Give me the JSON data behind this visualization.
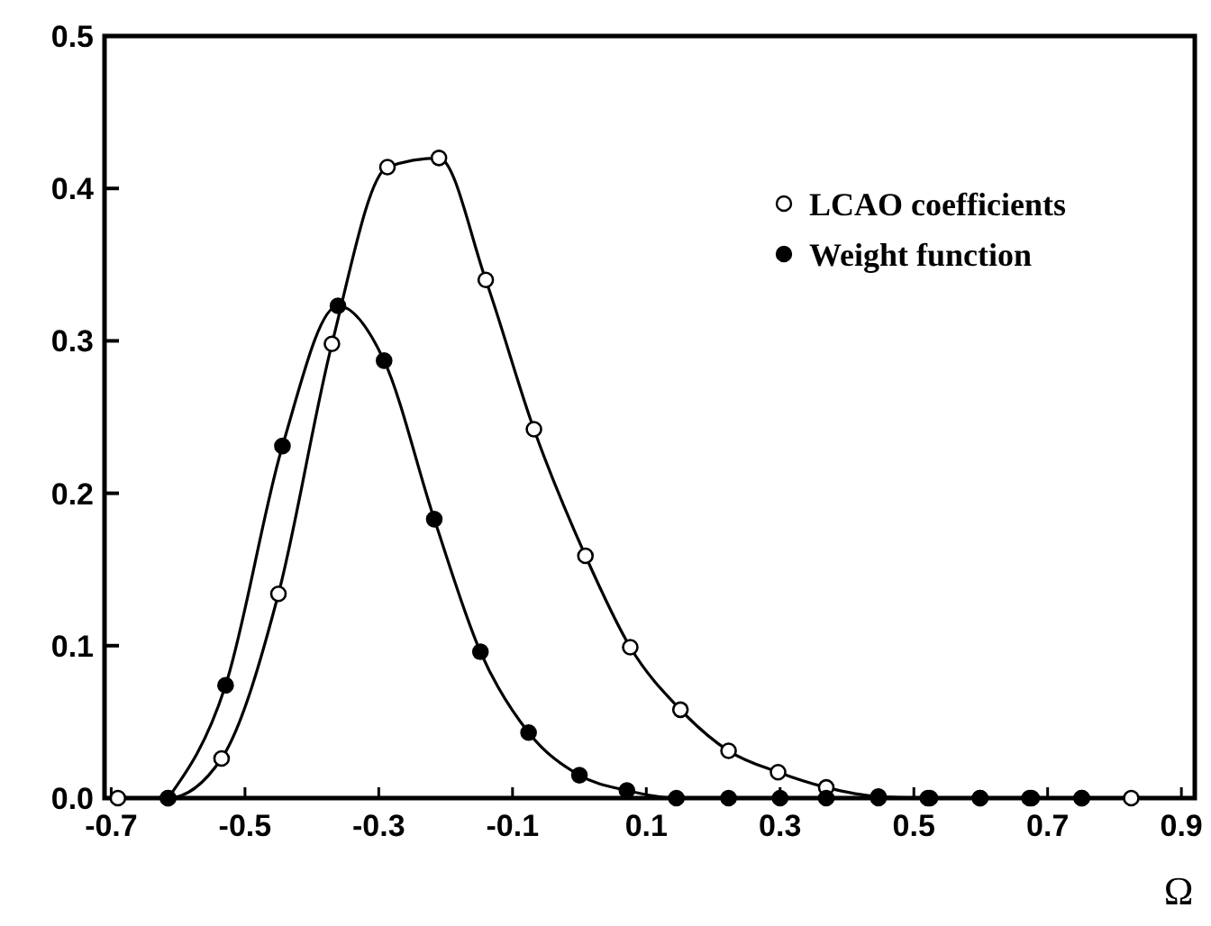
{
  "chart_data": {
    "type": "line",
    "xlabel": "Ω",
    "xlim": [
      -0.71,
      0.92
    ],
    "ylim": [
      0,
      0.5
    ],
    "xticks": [
      -0.7,
      -0.5,
      -0.3,
      -0.1,
      0.1,
      0.3,
      0.5,
      0.7,
      0.9
    ],
    "yticks": [
      {
        "value": 0,
        "label": "0.0"
      },
      0.1,
      0.2,
      0.3,
      0.4,
      0.5
    ],
    "grid": false,
    "legend": "top right",
    "marker": "circle",
    "line_style": "solid",
    "series": [
      {
        "name": "LCAO coefficients",
        "color": "#ffffff",
        "x": [
          -0.69,
          -0.615,
          -0.535,
          -0.45,
          -0.37,
          -0.287,
          -0.21,
          -0.14,
          -0.068,
          0.009,
          0.076,
          0.151,
          0.223,
          0.297,
          0.369,
          0.447,
          0.521,
          0.599,
          0.673,
          0.751,
          0.825
        ],
        "values": [
          0,
          0,
          0.026,
          0.134,
          0.298,
          0.414,
          0.42,
          0.34,
          0.242,
          0.159,
          0.099,
          0.058,
          0.031,
          0.017,
          0.007,
          0.001,
          0,
          0,
          0,
          0,
          0
        ]
      },
      {
        "name": "Weight function",
        "color": "#000000",
        "x": [
          -0.615,
          -0.529,
          -0.444,
          -0.361,
          -0.292,
          -0.217,
          -0.148,
          -0.076,
          0,
          0.071,
          0.145,
          0.223,
          0.3,
          0.369,
          0.447,
          0.524,
          0.599,
          0.676,
          0.751
        ],
        "values": [
          0,
          0.074,
          0.231,
          0.323,
          0.287,
          0.183,
          0.096,
          0.043,
          0.015,
          0.005,
          0,
          0,
          0,
          0,
          0,
          0,
          0,
          0,
          0
        ]
      }
    ]
  }
}
